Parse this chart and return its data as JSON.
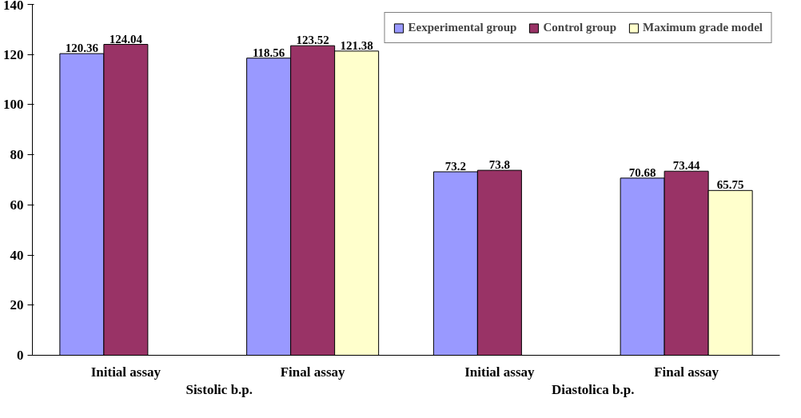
{
  "chart_data": {
    "type": "bar",
    "categories": [
      "Initial assay",
      "Final assay",
      "Initial assay",
      "Final assay"
    ],
    "series": [
      {
        "name": "Eexperimental group",
        "color": "#9999ff",
        "values": [
          120.36,
          118.56,
          73.2,
          70.68
        ]
      },
      {
        "name": "Control group",
        "color": "#993366",
        "values": [
          124.04,
          123.52,
          73.8,
          73.44
        ]
      },
      {
        "name": "Maximum grade model",
        "color": "#ffffcc",
        "values": [
          null,
          121.38,
          null,
          65.75
        ]
      }
    ],
    "annotations": [
      "Sistolic b.p.",
      "Diastolica b.p."
    ],
    "ylim": [
      0,
      140
    ],
    "yticks": [
      0,
      20,
      40,
      60,
      80,
      100,
      120,
      140
    ],
    "grid": false,
    "legend": "top",
    "data_labels": true
  }
}
